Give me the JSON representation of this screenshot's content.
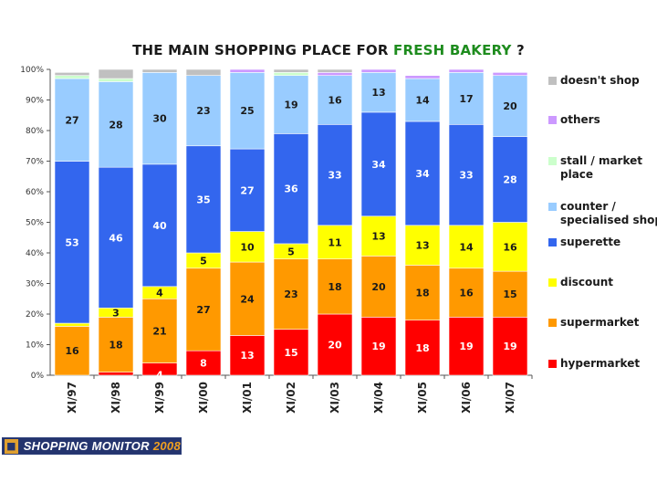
{
  "title_prefix": "THE MAIN SHOPPING PLACE FOR",
  "title_highlight": "FRESH BAKERY",
  "title_suffix": "?",
  "logo_text": "SHOPPING MONITOR",
  "logo_year": "2008",
  "chart_data": {
    "type": "bar",
    "stacked": true,
    "title": "THE MAIN SHOPPING PLACE FOR FRESH BAKERY ?",
    "xlabel": "",
    "ylabel": "",
    "ylim": [
      0,
      100
    ],
    "yticks": [
      "0%",
      "10%",
      "20%",
      "30%",
      "40%",
      "50%",
      "60%",
      "70%",
      "80%",
      "90%",
      "100%"
    ],
    "categories": [
      "XI/97",
      "XI/98",
      "XI/99",
      "XI/00",
      "XI/01",
      "XI/02",
      "XI/03",
      "XI/04",
      "XI/05",
      "XI/06",
      "XI/07"
    ],
    "legend_position": "right",
    "series": [
      {
        "name": "hypermarket",
        "color": "#ff0000",
        "values": [
          0,
          1,
          4,
          8,
          13,
          15,
          20,
          19,
          18,
          19,
          19
        ],
        "labels": [
          "",
          "",
          "4",
          "8",
          "13",
          "15",
          "20",
          "19",
          "18",
          "19",
          "19"
        ]
      },
      {
        "name": "supermarket",
        "color": "#ff9900",
        "values": [
          16,
          18,
          21,
          27,
          24,
          23,
          18,
          20,
          18,
          16,
          15
        ],
        "labels": [
          "16",
          "18",
          "21",
          "27",
          "24",
          "23",
          "18",
          "20",
          "18",
          "16",
          "15"
        ]
      },
      {
        "name": "discount",
        "color": "#ffff00",
        "values": [
          1,
          3,
          4,
          5,
          10,
          5,
          11,
          13,
          13,
          14,
          16
        ],
        "labels": [
          "",
          "3",
          "4",
          "5",
          "10",
          "5",
          "11",
          "13",
          "13",
          "14",
          "16"
        ]
      },
      {
        "name": "superette",
        "color": "#3366ee",
        "values": [
          53,
          46,
          40,
          35,
          27,
          36,
          33,
          34,
          34,
          33,
          28
        ],
        "labels": [
          "53",
          "46",
          "40",
          "35",
          "27",
          "36",
          "33",
          "34",
          "34",
          "33",
          "28"
        ]
      },
      {
        "name": "counter / specialised shop",
        "color": "#99ccff",
        "values": [
          27,
          28,
          30,
          23,
          25,
          19,
          16,
          13,
          14,
          17,
          20
        ],
        "labels": [
          "27",
          "28",
          "30",
          "23",
          "25",
          "19",
          "16",
          "13",
          "14",
          "17",
          "20"
        ]
      },
      {
        "name": "stall / market place",
        "color": "#ccffcc",
        "values": [
          1,
          1,
          0,
          0,
          0,
          1,
          0,
          0,
          0,
          0,
          0
        ],
        "labels": [
          "",
          "",
          "",
          "",
          "",
          "",
          "",
          "",
          "",
          "",
          ""
        ]
      },
      {
        "name": "others",
        "color": "#cc99ff",
        "values": [
          0,
          0,
          0,
          0,
          1,
          0,
          1,
          1,
          1,
          1,
          1
        ],
        "labels": [
          "",
          "",
          "",
          "",
          "",
          "",
          "",
          "",
          "",
          "",
          ""
        ]
      },
      {
        "name": "doesn't shop",
        "color": "#c0c0c0",
        "values": [
          1,
          3,
          1,
          2,
          0,
          1,
          1,
          0,
          0,
          0,
          0
        ],
        "labels": [
          "",
          "",
          "",
          "",
          "",
          "",
          "",
          "",
          "",
          "",
          ""
        ]
      }
    ],
    "legend": [
      {
        "name": "doesn't shop",
        "lines": [
          "doesn't shop"
        ],
        "color": "#c0c0c0"
      },
      {
        "name": "others",
        "lines": [
          "others"
        ],
        "color": "#cc99ff"
      },
      {
        "name": "stall / market place",
        "lines": [
          "stall / market",
          "place"
        ],
        "color": "#ccffcc"
      },
      {
        "name": "counter / specialised shop",
        "lines": [
          "counter /",
          "specialised shop"
        ],
        "color": "#99ccff"
      },
      {
        "name": "superette",
        "lines": [
          "superette"
        ],
        "color": "#3366ee"
      },
      {
        "name": "discount",
        "lines": [
          "discount"
        ],
        "color": "#ffff00"
      },
      {
        "name": "supermarket",
        "lines": [
          "supermarket"
        ],
        "color": "#ff9900"
      },
      {
        "name": "hypermarket",
        "lines": [
          "hypermarket"
        ],
        "color": "#ff0000"
      }
    ]
  }
}
